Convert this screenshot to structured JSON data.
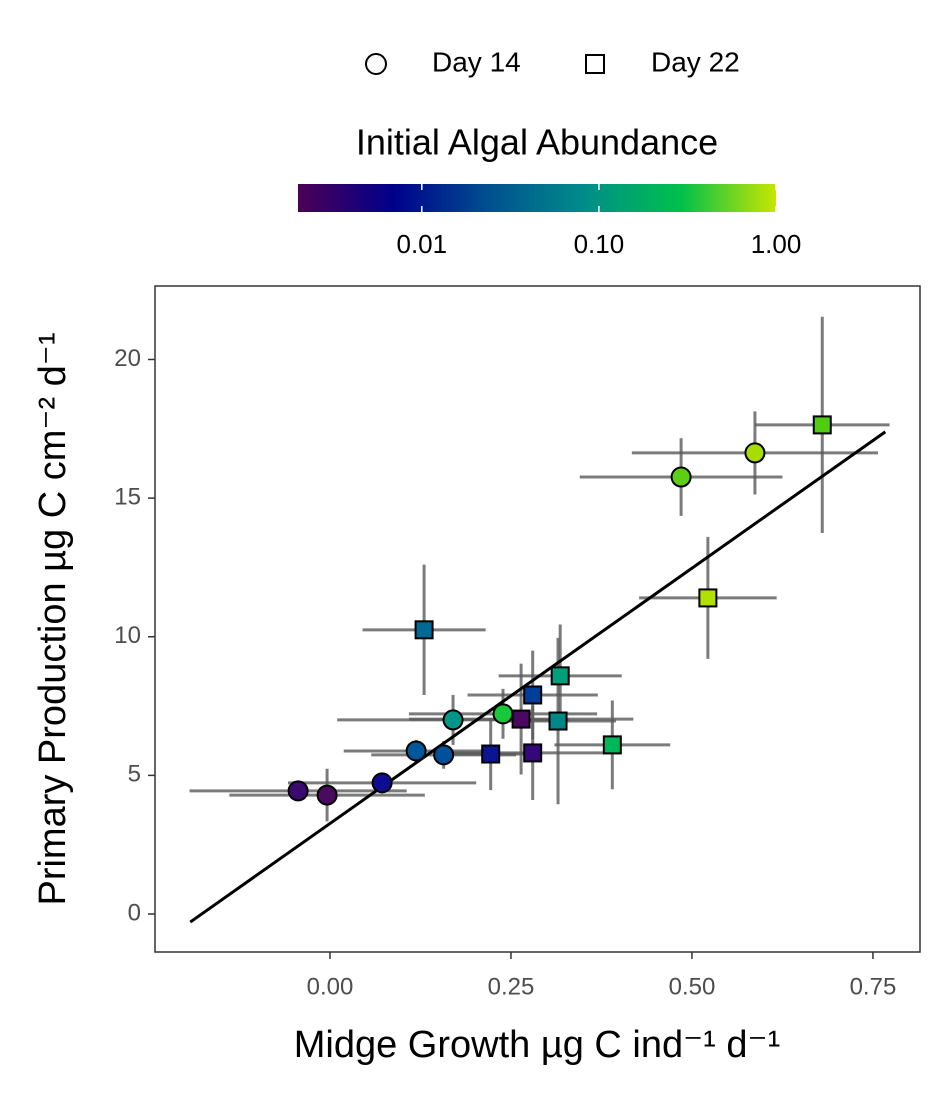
{
  "chart_data": {
    "type": "scatter",
    "x_label": "Midge Growth µg C  ind⁻¹ d⁻¹",
    "y_label": "Primary Production µg C cm⁻² d⁻¹",
    "xlim": [
      -0.2417,
      0.815
    ],
    "ylim": [
      -1.37,
      22.65
    ],
    "xticks": [
      {
        "value": 0,
        "label": "0.00"
      },
      {
        "value": 0.25,
        "label": "0.25"
      },
      {
        "value": 0.5,
        "label": "0.50"
      },
      {
        "value": 0.75,
        "label": "0.75"
      }
    ],
    "yticks": [
      0,
      5,
      10,
      15,
      20
    ],
    "grid": false,
    "legend_position": "top",
    "errorbar_color": "#5a5a5a",
    "series": [
      {
        "name": "Day 14",
        "shape": "circle",
        "x": [
          -0.044,
          -0.004,
          0.072,
          0.119,
          0.157,
          0.17,
          0.239,
          0.485,
          0.587
        ],
        "values": [
          4.44,
          4.29,
          4.73,
          5.88,
          5.74,
          7.0,
          7.22,
          15.76,
          16.63
        ],
        "xerr": [
          0.15,
          0.135,
          0.13,
          0.1,
          0.1,
          0.16,
          0.13,
          0.14,
          0.17
        ],
        "yerr": [
          0.1,
          0.95,
          0.3,
          0.4,
          0.5,
          0.9,
          0.9,
          1.4,
          1.5
        ],
        "colors": [
          "#3a0a6e",
          "#4a0a5e",
          "#0d0c93",
          "#00579a",
          "#00509a",
          "#00968a",
          "#18c83a",
          "#5ccf14",
          "#a6dc00"
        ]
      },
      {
        "name": "Day 22",
        "shape": "square",
        "x": [
          0.13,
          0.222,
          0.264,
          0.28,
          0.28,
          0.315,
          0.318,
          0.39,
          0.522,
          0.68
        ],
        "values": [
          10.25,
          5.77,
          7.03,
          7.9,
          5.81,
          6.96,
          8.59,
          6.1,
          11.4,
          17.64
        ],
        "xerr": [
          0.085,
          0.065,
          0.155,
          0.09,
          0.12,
          0.08,
          0.085,
          0.08,
          0.095,
          0.093
        ],
        "yerr": [
          2.35,
          1.3,
          2.0,
          1.6,
          1.7,
          3.0,
          1.85,
          1.6,
          2.2,
          3.9
        ],
        "colors": [
          "#006a94",
          "#0b1590",
          "#4a0860",
          "#003f98",
          "#34087a",
          "#008888",
          "#00a07a",
          "#00b85a",
          "#b2e000",
          "#52cc10"
        ]
      }
    ],
    "fit": {
      "x": [
        -0.193,
        0.767
      ],
      "y": [
        -0.29,
        17.39
      ],
      "color": "#000000"
    },
    "colorbar": {
      "title": "Initial Algal Abundance",
      "log": true,
      "lim": [
        0.002,
        1
      ],
      "ticks": [
        {
          "value": 0.01,
          "label": "0.01"
        },
        {
          "value": 0.1,
          "label": "0.10"
        },
        {
          "value": 1,
          "label": "1.00"
        }
      ],
      "colors": [
        "#4b0055",
        "#00008b",
        "#00508f",
        "#008d8a",
        "#00c04b",
        "#c8e600"
      ]
    }
  }
}
